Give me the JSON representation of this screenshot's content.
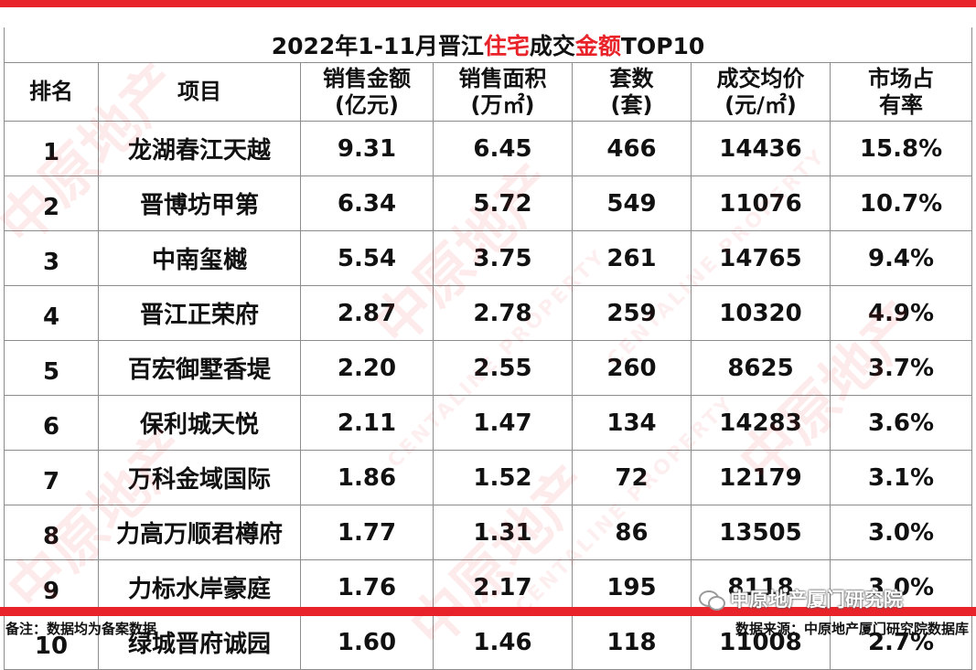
{
  "title": {
    "part1": "2022年1-11月晋江",
    "part2": "住宅",
    "part3": "成交",
    "part4": "金额",
    "part5": "TOP10"
  },
  "headers": {
    "rank": "排名",
    "project": "项目",
    "sales_amount": [
      "销售金额",
      "(亿元)"
    ],
    "sales_area": [
      "销售面积",
      "(万㎡)"
    ],
    "units": [
      "套数",
      "(套)"
    ],
    "avg_price": [
      "成交均价",
      "(元/㎡)"
    ],
    "share": [
      "市场占",
      "有率"
    ]
  },
  "rows": [
    {
      "rank": "1",
      "project": "龙湖春江天越",
      "amount": "9.31",
      "area": "6.45",
      "units": "466",
      "price": "14436",
      "share": "15.8%"
    },
    {
      "rank": "2",
      "project": "晋博坊甲第",
      "amount": "6.34",
      "area": "5.72",
      "units": "549",
      "price": "11076",
      "share": "10.7%"
    },
    {
      "rank": "3",
      "project": "中南玺樾",
      "amount": "5.54",
      "area": "3.75",
      "units": "261",
      "price": "14765",
      "share": "9.4%"
    },
    {
      "rank": "4",
      "project": "晋江正荣府",
      "amount": "2.87",
      "area": "2.78",
      "units": "259",
      "price": "10320",
      "share": "4.9%"
    },
    {
      "rank": "5",
      "project": "百宏御墅香堤",
      "amount": "2.20",
      "area": "2.55",
      "units": "260",
      "price": "8625",
      "share": "3.7%"
    },
    {
      "rank": "6",
      "project": "保利城天悦",
      "amount": "2.11",
      "area": "1.47",
      "units": "134",
      "price": "14283",
      "share": "3.6%"
    },
    {
      "rank": "7",
      "project": "万科金域国际",
      "amount": "1.86",
      "area": "1.52",
      "units": "72",
      "price": "12179",
      "share": "3.1%"
    },
    {
      "rank": "8",
      "project": "力高万顺君樽府",
      "amount": "1.77",
      "area": "1.31",
      "units": "86",
      "price": "13505",
      "share": "3.0%"
    },
    {
      "rank": "9",
      "project": "力标水岸豪庭",
      "amount": "1.76",
      "area": "2.17",
      "units": "195",
      "price": "8118",
      "share": "3.0%"
    },
    {
      "rank": "10",
      "project": "绿城晋府诚园",
      "amount": "1.60",
      "area": "1.46",
      "units": "118",
      "price": "11008",
      "share": "2.7%"
    }
  ],
  "footer": {
    "note": "备注：数据均为备案数据",
    "source": "数据来源：中原地产厦门研究院数据库"
  },
  "wechat_label": "中原地产厦门研究院",
  "watermark": {
    "brand": "中原地产",
    "sub": "CENTALINE PROPERTY"
  },
  "colors": {
    "accent": "#e8232a"
  },
  "icons": {
    "wechat": "wechat-icon"
  }
}
